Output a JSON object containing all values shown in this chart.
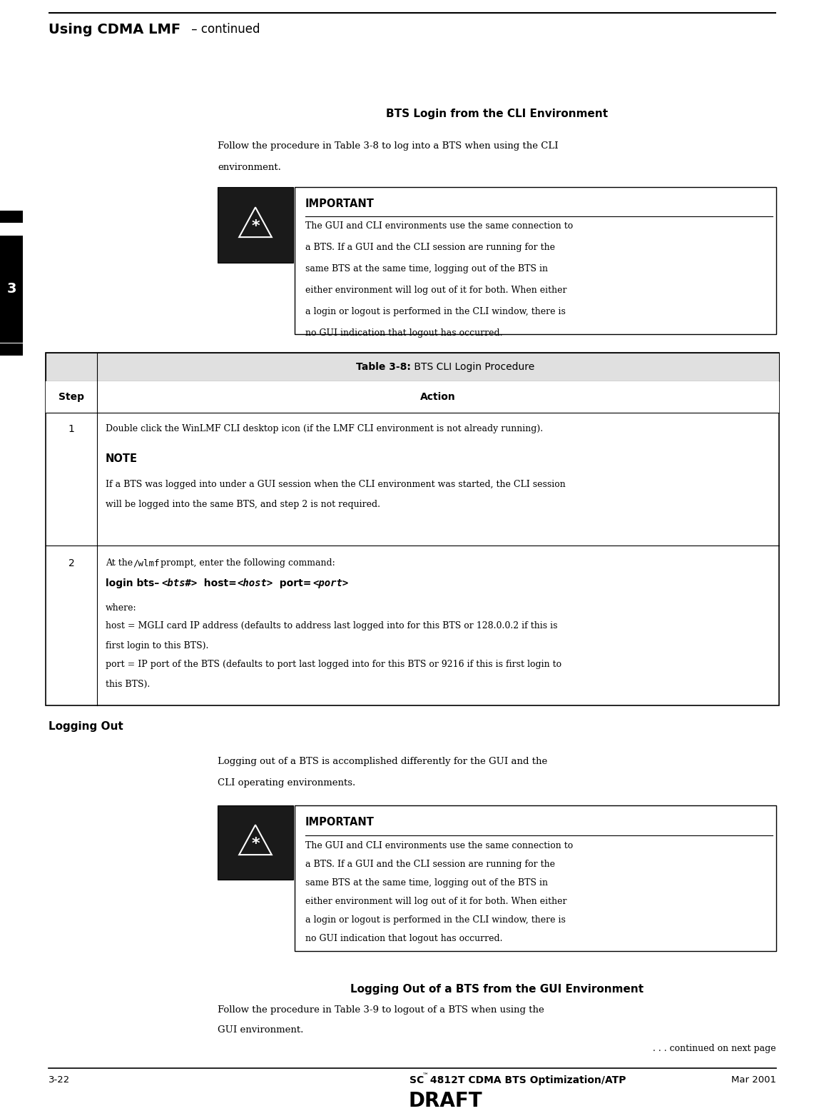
{
  "page_width": 11.48,
  "page_height": 15.56,
  "bg_color": "#ffffff",
  "header_title_bold": "Using CDMA LMF",
  "header_title_normal": " – continued",
  "section1_title": "BTS Login from the CLI Environment",
  "section1_intro1": "Follow the procedure in Table 3-8 to log into a BTS when using the CLI",
  "section1_intro2": "environment.",
  "important_title": "IMPORTANT",
  "important_text1_lines": [
    "The GUI and CLI environments use the same connection to",
    "a BTS. If a GUI and the CLI session are running for the",
    "same BTS at the same time, logging out of the BTS in",
    "either environment will log out of it for both. When either",
    "a login or logout is performed in the CLI window, there is",
    "no GUI indication that logout has occurred."
  ],
  "table_title_bold": "Table 3-8:",
  "table_title_normal": " BTS CLI Login Procedure",
  "table_col1_header": "Step",
  "table_col2_header": "Action",
  "table_step1": "1",
  "table_step1_action": "Double click the WinLMF CLI desktop icon (if the LMF CLI environment is not already running).",
  "table_step1_note_title": "NOTE",
  "table_step1_note_line1": "If a BTS was logged into under a GUI session when the CLI environment was started, the CLI session",
  "table_step1_note_line2": "will be logged into the same BTS, and step 2 is not required.",
  "table_step2": "2",
  "table_step2_line1a": "At the ",
  "table_step2_line1b": "/wlmf",
  "table_step2_line1c": " prompt, enter the following command:",
  "table_step2_where": "where:",
  "table_step2_host1": "host = MGLI card IP address (defaults to address last logged into for this BTS or 128.0.0.2 if this is",
  "table_step2_host2": "first login to this BTS).",
  "table_step2_port1": "port = IP port of the BTS (defaults to port last logged into for this BTS or 9216 if this is first login to",
  "table_step2_port2": "this BTS).",
  "section2_title": "Logging Out",
  "section2_intro1": "Logging out of a BTS is accomplished differently for the GUI and the",
  "section2_intro2": "CLI operating environments.",
  "important_text2_lines": [
    "The GUI and CLI environments use the same connection to",
    "a BTS. If a GUI and the CLI session are running for the",
    "same BTS at the same time, logging out of the BTS in",
    "either environment will log out of it for both. When either",
    "a login or logout is performed in the CLI window, there is",
    "no GUI indication that logout has occurred."
  ],
  "section3_title": "Logging Out of a BTS from the GUI Environment",
  "section3_intro1": "Follow the procedure in Table 3-9 to logout of a BTS when using the",
  "section3_intro2": "GUI environment.",
  "continued_text": ". . . continued on next page",
  "footer_left": "3-22",
  "footer_center_bold": "SC",
  "footer_center_tm": "™",
  "footer_center_rest": " 4812T CDMA BTS Optimization/ATP",
  "footer_right": "Mar 2001",
  "footer_draft": "DRAFT",
  "tab_number": "3"
}
